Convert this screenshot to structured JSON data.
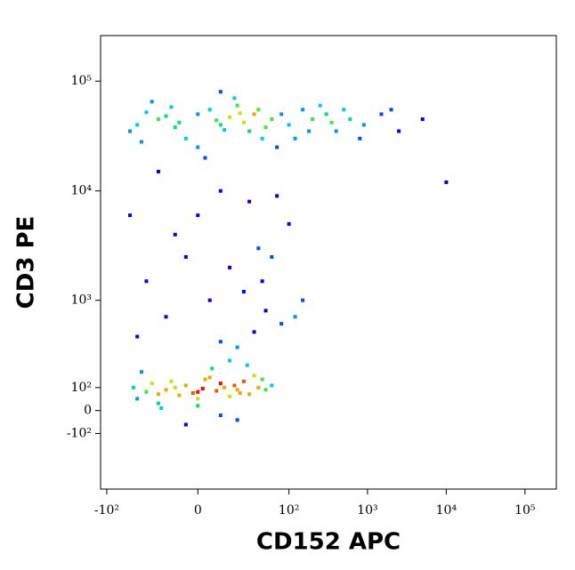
{
  "chart_data": {
    "type": "scatter",
    "x_label": "CD152 APC",
    "y_label": "CD3 PE",
    "scale": "biexponential",
    "xlim": [
      -120,
      250000
    ],
    "ylim": [
      -500,
      260000
    ],
    "xticks": [
      {
        "value": -100,
        "label": "-10²"
      },
      0,
      {
        "value": 100,
        "label": "10²"
      },
      {
        "value": 1000,
        "label": "10³"
      },
      {
        "value": 10000,
        "label": "10⁴"
      },
      {
        "value": 100000,
        "label": "10⁵"
      }
    ],
    "yticks": [
      {
        "value": 100000,
        "label": "10⁵"
      },
      {
        "value": 10000,
        "label": "10⁴"
      },
      {
        "value": 1000,
        "label": "10³"
      },
      {
        "value": 100,
        "label": "10²"
      },
      0,
      {
        "value": -100,
        "label": "-10²"
      }
    ],
    "x": [
      -20,
      0,
      10,
      25,
      -10,
      5,
      15,
      30,
      -30,
      20,
      -5,
      8,
      12,
      -15,
      35,
      -40,
      45,
      0,
      18,
      -25,
      60,
      -50,
      3,
      40,
      -8,
      22,
      -35,
      50,
      10,
      -12,
      80,
      100,
      150,
      200,
      300,
      400,
      600,
      900,
      1500,
      2500,
      5000,
      120,
      250,
      70,
      500,
      180,
      350,
      800,
      2000,
      10000,
      -20,
      10,
      30,
      0,
      -10,
      40,
      15,
      60,
      -30,
      25,
      5,
      50,
      -15,
      80,
      35,
      -40,
      10,
      20,
      100,
      150,
      -5,
      45,
      70,
      -50,
      120,
      -10,
      0,
      10,
      20,
      -20,
      5,
      15,
      -5,
      25,
      -15,
      30,
      0,
      12,
      -25,
      8,
      18,
      -8,
      35,
      -30,
      40,
      2,
      -12,
      22,
      6,
      -35,
      50,
      -40,
      28,
      15,
      -20,
      0,
      45,
      60,
      -45,
      10,
      -5,
      20,
      -18,
      3,
      -2
    ],
    "values": [
      45000,
      50000,
      40000,
      42000,
      38000,
      55000,
      47000,
      35000,
      52000,
      60000,
      30000,
      44000,
      36000,
      48000,
      50000,
      40000,
      30000,
      25000,
      70000,
      65000,
      45000,
      35000,
      20000,
      55000,
      42000,
      51000,
      28000,
      38000,
      80000,
      58000,
      50000,
      40000,
      55000,
      45000,
      50000,
      35000,
      45000,
      40000,
      50000,
      35000,
      45000,
      30000,
      60000,
      25000,
      55000,
      35000,
      42000,
      30000,
      55000,
      12000,
      15000,
      10000,
      8000,
      6000,
      4000,
      3000,
      2000,
      2500,
      1500,
      1200,
      1000,
      800,
      700,
      600,
      500,
      450,
      400,
      350,
      5000,
      1000,
      2500,
      1500,
      9000,
      6000,
      700,
      100,
      80,
      120,
      90,
      70,
      150,
      60,
      110,
      130,
      90,
      70,
      50,
      100,
      120,
      85,
      110,
      65,
      160,
      80,
      100,
      95,
      130,
      75,
      200,
      180,
      90,
      50,
      220,
      250,
      30,
      20,
      140,
      110,
      100,
      -20,
      -60,
      -40,
      10,
      140,
      75
    ]
  }
}
